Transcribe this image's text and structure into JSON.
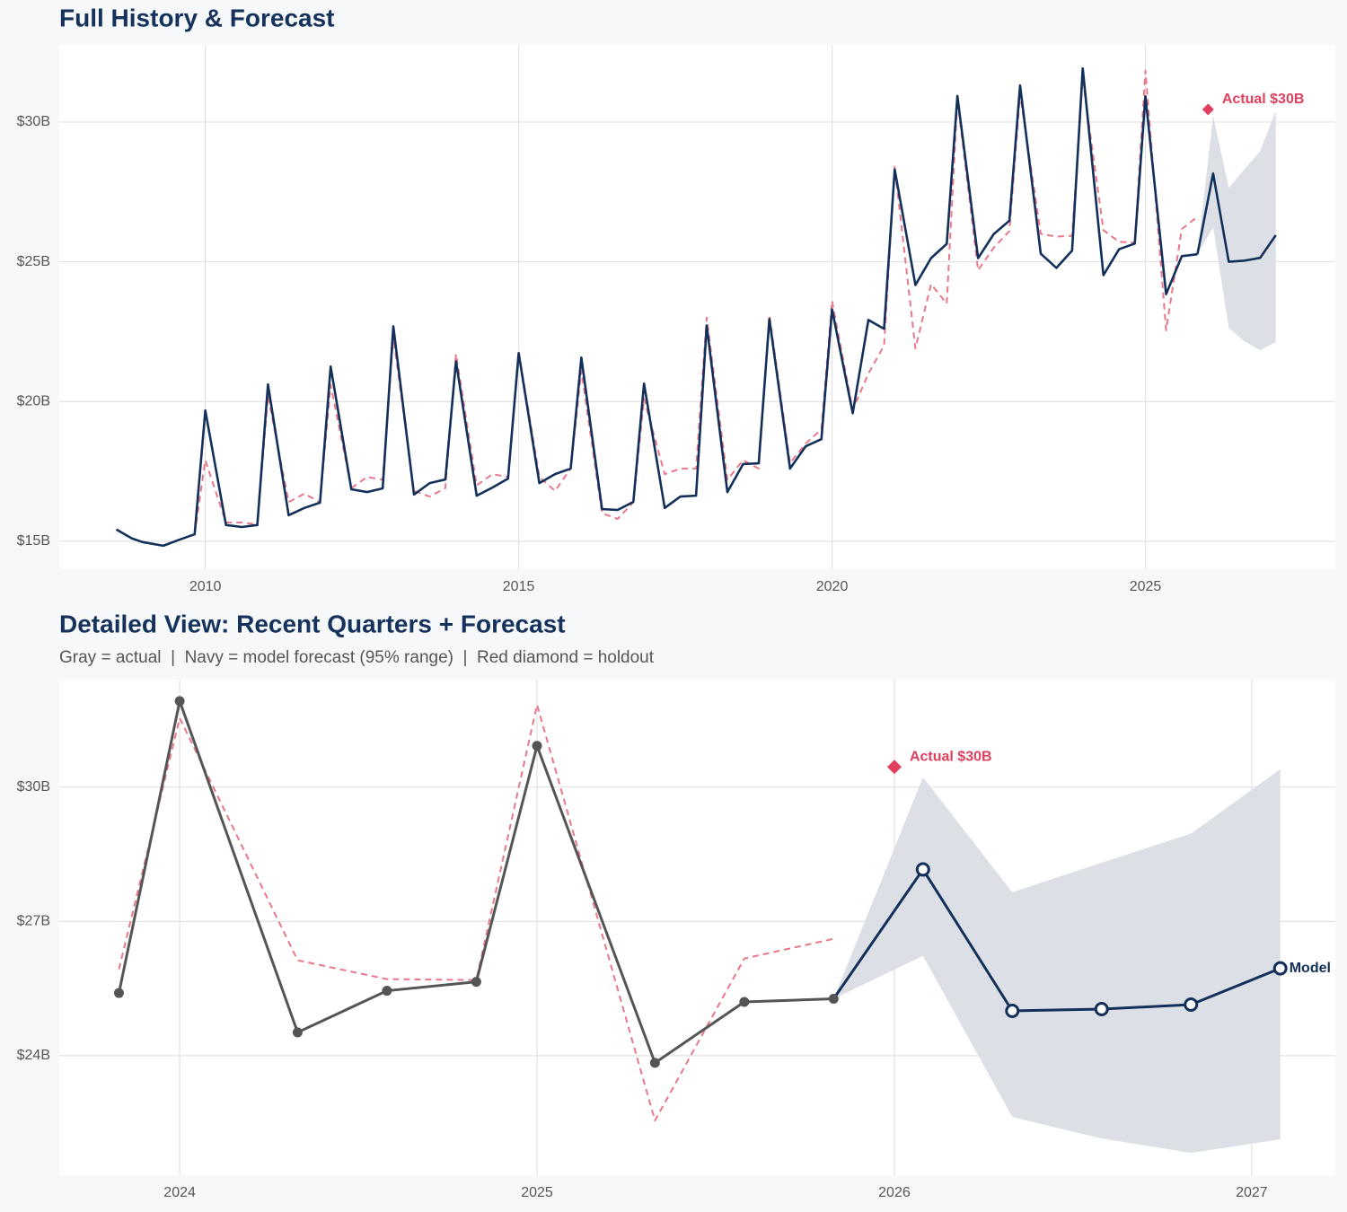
{
  "chart_data": [
    {
      "type": "line",
      "title": "Full History & Forecast",
      "xlim": [
        2007.67,
        2028.03
      ],
      "ylim": [
        14.0,
        32.76
      ],
      "xticks": [
        2010,
        2015,
        2020,
        2025
      ],
      "yticks": [
        {
          "value": 15,
          "label": "$15B"
        },
        {
          "value": 20,
          "label": "$20B"
        },
        {
          "value": 25,
          "label": "$25B"
        },
        {
          "value": 30,
          "label": "$30B"
        }
      ],
      "grid": true,
      "series": [
        {
          "color": "#13305a",
          "band_color": "#dce0e6",
          "x": [
            2025.83,
            2026.08,
            2026.33,
            2026.58,
            2026.83,
            2027.08
          ],
          "values": [
            25.27,
            28.16,
            25.0,
            25.04,
            25.14,
            25.95
          ],
          "lower": [
            25.27,
            26.23,
            22.63,
            22.15,
            21.83,
            22.13
          ],
          "upper": [
            25.27,
            30.22,
            27.65,
            28.31,
            28.96,
            30.4
          ]
        },
        {
          "color": "#e8788a",
          "line_style": "dashed",
          "x": [
            2009.83,
            2010,
            2010.33,
            2010.58,
            2010.83,
            2011,
            2011.33,
            2011.58,
            2011.83,
            2012,
            2012.33,
            2012.58,
            2012.83,
            2013,
            2013.33,
            2013.58,
            2013.83,
            2014,
            2014.33,
            2014.58,
            2014.83,
            2015,
            2015.33,
            2015.58,
            2015.83,
            2016,
            2016.33,
            2016.58,
            2016.83,
            2017,
            2017.33,
            2017.58,
            2017.83,
            2018,
            2018.33,
            2018.58,
            2018.83,
            2019,
            2019.33,
            2019.58,
            2019.83,
            2020,
            2020.33,
            2020.58,
            2020.83,
            2021,
            2021.33,
            2021.58,
            2021.83,
            2022,
            2022.33,
            2022.58,
            2022.83,
            2023,
            2023.33,
            2023.58,
            2023.83,
            2024,
            2024.33,
            2024.58,
            2024.83,
            2025,
            2025.33,
            2025.58,
            2025.83
          ],
          "values": [
            15.25,
            17.9,
            15.67,
            15.67,
            15.6,
            20.2,
            16.4,
            16.7,
            16.4,
            20.6,
            16.9,
            17.3,
            17.2,
            22.3,
            16.8,
            16.6,
            16.9,
            21.7,
            17.0,
            17.4,
            17.3,
            21.8,
            17.3,
            16.8,
            17.6,
            21.1,
            16.0,
            15.8,
            16.4,
            20.1,
            17.4,
            17.6,
            17.6,
            23.0,
            17.2,
            17.9,
            17.6,
            23.1,
            17.8,
            18.5,
            19.0,
            23.6,
            19.7,
            21.0,
            22.0,
            28.4,
            21.9,
            24.2,
            23.5,
            30.8,
            24.7,
            25.5,
            26.1,
            31.0,
            26.0,
            25.9,
            25.93,
            31.54,
            26.13,
            25.71,
            25.69,
            31.84,
            22.55,
            26.17,
            26.61
          ]
        },
        {
          "color": "#13305a",
          "x": [
            2008.58,
            2008.83,
            2009,
            2009.33,
            2009.58,
            2009.83,
            2010,
            2010.33,
            2010.58,
            2010.83,
            2011,
            2011.33,
            2011.58,
            2011.83,
            2012,
            2012.33,
            2012.58,
            2012.83,
            2013,
            2013.33,
            2013.58,
            2013.83,
            2014,
            2014.33,
            2014.58,
            2014.83,
            2015,
            2015.33,
            2015.58,
            2015.83,
            2016,
            2016.33,
            2016.58,
            2016.83,
            2017,
            2017.33,
            2017.58,
            2017.83,
            2018,
            2018.33,
            2018.58,
            2018.83,
            2019,
            2019.33,
            2019.58,
            2019.83,
            2020,
            2020.33,
            2020.58,
            2020.83,
            2021,
            2021.33,
            2021.58,
            2021.83,
            2022,
            2022.33,
            2022.58,
            2022.83,
            2023,
            2023.33,
            2023.58,
            2023.83,
            2024,
            2024.33,
            2024.58,
            2024.83,
            2025,
            2025.33,
            2025.58,
            2025.83
          ],
          "values": [
            15.42,
            15.1,
            14.97,
            14.84,
            15.05,
            15.25,
            19.68,
            15.58,
            15.51,
            15.58,
            20.61,
            15.93,
            16.19,
            16.38,
            21.25,
            16.86,
            16.76,
            16.89,
            22.69,
            16.67,
            17.08,
            17.21,
            21.44,
            16.63,
            16.92,
            17.24,
            21.73,
            17.08,
            17.4,
            17.6,
            21.57,
            16.15,
            16.12,
            16.41,
            20.64,
            16.19,
            16.6,
            16.63,
            22.72,
            16.76,
            17.76,
            17.79,
            22.95,
            17.6,
            18.4,
            18.65,
            23.3,
            19.58,
            22.92,
            22.6,
            28.3,
            24.17,
            25.13,
            25.64,
            30.93,
            25.13,
            25.99,
            26.47,
            31.31,
            25.29,
            24.78,
            25.4,
            31.92,
            24.52,
            25.45,
            25.65,
            30.92,
            23.84,
            25.2,
            25.27
          ]
        }
      ],
      "annotation": {
        "x": 2026.0,
        "y": 30.45,
        "text": "Actual $30B",
        "color": "#e0405e"
      }
    },
    {
      "type": "line",
      "title": "Detailed View: Recent Quarters + Forecast",
      "subtitle": "Gray = actual  |  Navy = model forecast (95% range)  |  Red diamond = holdout",
      "xlim": [
        2023.663,
        2027.234
      ],
      "ylim": [
        21.33,
        32.4
      ],
      "xticks": [
        2024,
        2025,
        2026,
        2027
      ],
      "yticks": [
        {
          "value": 24,
          "label": "$24B"
        },
        {
          "value": 27,
          "label": "$27B"
        },
        {
          "value": 30,
          "label": "$30B"
        }
      ],
      "grid": true,
      "series": [
        {
          "color": "#13305a",
          "band_color": "#dce0e6",
          "marker": "hollow",
          "end_label": "Model",
          "x": [
            2025.83,
            2026.08,
            2026.33,
            2026.58,
            2026.83,
            2027.08
          ],
          "values": [
            25.27,
            28.16,
            25.0,
            25.04,
            25.14,
            25.95
          ],
          "lower": [
            25.27,
            26.23,
            22.63,
            22.15,
            21.83,
            22.13
          ],
          "upper": [
            25.27,
            30.22,
            27.65,
            28.31,
            28.96,
            30.4
          ]
        },
        {
          "color": "#e8788a",
          "line_style": "dashed",
          "x": [
            2023.83,
            2024,
            2024.33,
            2024.58,
            2024.83,
            2025,
            2025.33,
            2025.58,
            2025.83
          ],
          "values": [
            25.93,
            31.54,
            26.13,
            25.71,
            25.69,
            31.84,
            22.55,
            26.17,
            26.61
          ]
        },
        {
          "color": "#555555",
          "marker": "filled",
          "x": [
            2023.83,
            2024,
            2024.33,
            2024.58,
            2024.83,
            2025,
            2025.33,
            2025.58,
            2025.83
          ],
          "values": [
            25.4,
            31.92,
            24.52,
            25.45,
            25.65,
            30.92,
            23.84,
            25.2,
            25.27
          ]
        }
      ],
      "annotation": {
        "x": 2026.0,
        "y": 30.45,
        "text": "Actual $30B",
        "color": "#e0405e"
      }
    }
  ]
}
